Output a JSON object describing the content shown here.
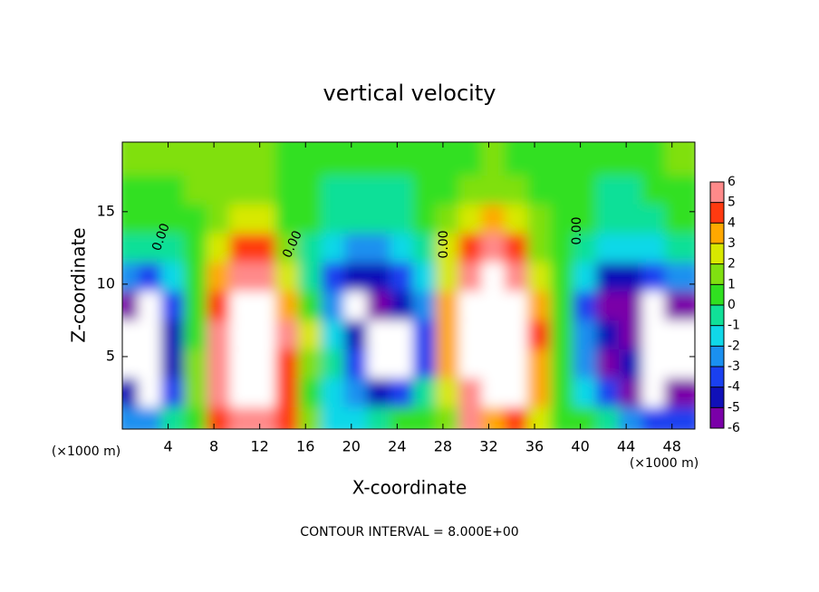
{
  "chart_data": {
    "type": "heatmap",
    "title": "vertical velocity",
    "x_label": "X-coordinate",
    "y_label": "Z-coordinate",
    "x_unit": "(×1000 m)",
    "footer": "CONTOUR INTERVAL = 8.000E+00",
    "contour_labels": [
      "0.00",
      "0.00",
      "0.00",
      "0.00"
    ],
    "xlim": [
      0,
      50
    ],
    "ylim": [
      0,
      19.8
    ],
    "xticks": [
      4,
      8,
      12,
      16,
      20,
      24,
      28,
      32,
      36,
      40,
      44,
      48
    ],
    "yticks": [
      5,
      10,
      15
    ],
    "colorbar_ticks": [
      6,
      5,
      4,
      3,
      2,
      1,
      0,
      -1,
      -2,
      -3,
      -4,
      -5,
      -6
    ],
    "colors": [
      "#7a00a8",
      "#1010b8",
      "#1a40f0",
      "#1a90f0",
      "#10d8e8",
      "#10e098",
      "#30e020",
      "#80e010",
      "#d8e800",
      "#ffa800",
      "#ff3a10",
      "#ff8a8a"
    ],
    "out_of_range_color": "#ffffff",
    "x": [
      1,
      3,
      5,
      7,
      9,
      11,
      13,
      15,
      17,
      19,
      21,
      23,
      25,
      27,
      29,
      31,
      33,
      35,
      37,
      39,
      41,
      43,
      45,
      47,
      49
    ],
    "y": [
      1,
      3,
      5,
      7,
      9,
      11,
      13,
      15,
      17,
      19
    ],
    "values": [
      [
        -3,
        -3,
        -1,
        0.5,
        4,
        5,
        5,
        4,
        1,
        -2,
        -2,
        -1,
        0.5,
        0.5,
        1,
        5,
        3,
        4,
        2,
        0.5,
        0,
        -1,
        -3,
        -4,
        -4
      ],
      [
        -5,
        -7,
        -4,
        1,
        6,
        7,
        7,
        4,
        0,
        -2,
        -3,
        -5,
        -4,
        -1,
        2,
        6,
        8,
        7,
        3,
        0,
        -2,
        -4,
        -6,
        -7,
        -6
      ],
      [
        -7,
        -8,
        -5,
        1,
        6,
        9,
        8,
        4,
        1,
        -1,
        -4,
        -7,
        -8,
        -4,
        3,
        8,
        10,
        8,
        3,
        0,
        -3,
        -6,
        -5,
        -7,
        -7
      ],
      [
        -7,
        -8,
        -5,
        0.5,
        5,
        8,
        7,
        5,
        2,
        -2,
        -5,
        -7,
        -7,
        -4,
        3,
        8,
        9,
        8,
        4,
        0,
        -3,
        -5,
        -6,
        -8,
        -7
      ],
      [
        -6,
        -7,
        -4,
        0,
        4,
        8,
        7,
        3,
        0,
        -3,
        -7,
        -6,
        -5,
        -3,
        3,
        7,
        8,
        7,
        3,
        0,
        -4,
        -6,
        -6,
        -7,
        -6
      ],
      [
        -3,
        -4,
        -2,
        0,
        3,
        6,
        5,
        2,
        -1,
        -4,
        -5,
        -5,
        -4,
        -2,
        2,
        6,
        7,
        6,
        2,
        0,
        -2,
        -5,
        -5,
        -4,
        -3
      ],
      [
        -1,
        -1,
        -1,
        0.5,
        2,
        4,
        4,
        1,
        -1,
        -2,
        -3,
        -3,
        -2,
        -1,
        2,
        4,
        5,
        4,
        1,
        0,
        -1,
        -2,
        -2,
        -2,
        -1
      ],
      [
        0,
        0,
        0,
        0.5,
        1.5,
        2,
        2,
        0.5,
        0,
        -1,
        -1,
        -1,
        -1,
        0,
        1,
        2,
        3,
        2,
        1,
        0,
        0,
        -1,
        -1,
        -1,
        0
      ],
      [
        0.5,
        0.5,
        0.5,
        1,
        1,
        1.5,
        1,
        0.5,
        0,
        -0.5,
        -0.5,
        -0.5,
        -0.5,
        0,
        0.5,
        1,
        1.5,
        1,
        0.5,
        0,
        0,
        -0.5,
        -0.5,
        0,
        0
      ],
      [
        1,
        1,
        1,
        1,
        1,
        1,
        1,
        0.5,
        0.5,
        0,
        0,
        0,
        0,
        0,
        0.5,
        0.5,
        1,
        0.5,
        0.5,
        0,
        0,
        0,
        0,
        0.5,
        1
      ]
    ]
  }
}
